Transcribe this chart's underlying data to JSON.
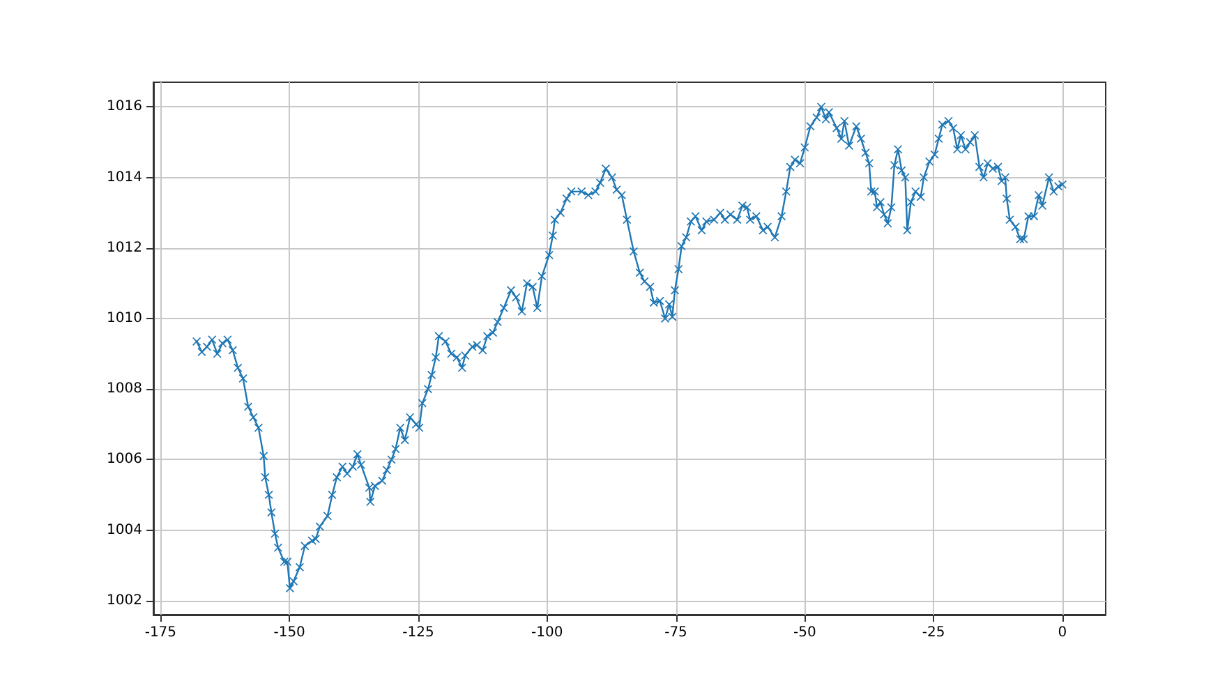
{
  "chart_data": {
    "type": "line",
    "marker": "cross",
    "line_style": "solid",
    "grid": true,
    "xlim": [
      -176.4,
      8.4
    ],
    "xticks": [
      -175,
      -150,
      -125,
      -100,
      -75,
      -50,
      -25,
      0
    ],
    "ylim": [
      1001.6,
      1016.7
    ],
    "yticks": [
      1002,
      1004,
      1006,
      1008,
      1010,
      1012,
      1014,
      1016
    ],
    "series": [
      {
        "color": "#1f77b4",
        "x": [
          -168,
          -167,
          -166,
          -165,
          -164,
          -163,
          -162,
          -161,
          -160,
          -159,
          -158,
          -157,
          -156,
          -155,
          -154.7,
          -154,
          -153.5,
          -152.8,
          -152.2,
          -151,
          -150.4,
          -149.9,
          -149.2,
          -148,
          -147,
          -145.6,
          -144.9,
          -144.1,
          -142.6,
          -141.7,
          -140.8,
          -139.7,
          -138.8,
          -137.7,
          -136.8,
          -136.1,
          -134.5,
          -134.3,
          -133.4,
          -132,
          -131.1,
          -130.2,
          -129.4,
          -128.5,
          -127.6,
          -126.6,
          -125.4,
          -124.8,
          -124.2,
          -123.1,
          -122.4,
          -121.6,
          -121,
          -119.7,
          -118.6,
          -117.5,
          -116.5,
          -115.9,
          -114.5,
          -113.6,
          -112.5,
          -111.6,
          -110.5,
          -109.6,
          -108.4,
          -107,
          -106,
          -104.9,
          -103.9,
          -102.8,
          -101.9,
          -101,
          -99.6,
          -98.9,
          -98.5,
          -97.4,
          -96.2,
          -95.3,
          -93.3,
          -92,
          -90.6,
          -89.7,
          -88.6,
          -87.4,
          -86.5,
          -85.5,
          -84.5,
          -83.2,
          -82,
          -81.1,
          -80,
          -79.3,
          -78.1,
          -77.1,
          -76.3,
          -75.7,
          -75.2,
          -74.5,
          -73.9,
          -73,
          -72.1,
          -71.2,
          -70,
          -69.1,
          -67.6,
          -66.4,
          -65.5,
          -64.4,
          -63.1,
          -62.1,
          -61.2,
          -60.6,
          -59.4,
          -58.1,
          -57.2,
          -55.8,
          -54.5,
          -53.6,
          -52.8,
          -51.9,
          -50.9,
          -50,
          -48.9,
          -47.7,
          -46.8,
          -45.9,
          -45.3,
          -43.8,
          -42.9,
          -42.3,
          -41.4,
          -40,
          -39.1,
          -38.2,
          -37.5,
          -37.1,
          -36.4,
          -36,
          -35.3,
          -34.6,
          -33.9,
          -33.2,
          -32.6,
          -31.9,
          -31.2,
          -30.5,
          -30.1,
          -29.4,
          -28.5,
          -27.5,
          -26.9,
          -25.8,
          -24.8,
          -24,
          -23.3,
          -22.1,
          -21.2,
          -20.4,
          -19.7,
          -18.8,
          -17.9,
          -17,
          -16.1,
          -15.3,
          -14.5,
          -13.5,
          -12.5,
          -11.8,
          -11.1,
          -10.8,
          -10.2,
          -9.1,
          -8.2,
          -7.5,
          -6.6,
          -5.5,
          -4.6,
          -3.9,
          -2.6,
          -1.7,
          -0.8,
          0
        ],
        "values": [
          1009.35,
          1009.05,
          1009.2,
          1009.4,
          1009.0,
          1009.3,
          1009.4,
          1009.1,
          1008.6,
          1008.3,
          1007.5,
          1007.2,
          1006.9,
          1006.1,
          1005.5,
          1005.0,
          1004.5,
          1003.9,
          1003.5,
          1003.1,
          1003.1,
          1002.35,
          1002.55,
          1002.95,
          1003.55,
          1003.7,
          1003.75,
          1004.1,
          1004.4,
          1005.0,
          1005.5,
          1005.8,
          1005.6,
          1005.8,
          1006.15,
          1005.85,
          1005.2,
          1004.8,
          1005.25,
          1005.4,
          1005.7,
          1006.0,
          1006.3,
          1006.9,
          1006.55,
          1007.2,
          1007.0,
          1006.9,
          1007.6,
          1008.0,
          1008.4,
          1008.9,
          1009.5,
          1009.35,
          1009.0,
          1008.9,
          1008.6,
          1008.95,
          1009.2,
          1009.25,
          1009.1,
          1009.5,
          1009.6,
          1009.9,
          1010.3,
          1010.8,
          1010.6,
          1010.2,
          1011.0,
          1010.9,
          1010.3,
          1011.2,
          1011.8,
          1012.35,
          1012.8,
          1013.0,
          1013.4,
          1013.6,
          1013.6,
          1013.5,
          1013.6,
          1013.85,
          1014.25,
          1014.0,
          1013.65,
          1013.5,
          1012.8,
          1011.9,
          1011.3,
          1011.05,
          1010.9,
          1010.45,
          1010.5,
          1010.0,
          1010.4,
          1010.05,
          1010.8,
          1011.4,
          1012.05,
          1012.3,
          1012.75,
          1012.9,
          1012.5,
          1012.75,
          1012.8,
          1013.0,
          1012.8,
          1012.95,
          1012.8,
          1013.2,
          1013.15,
          1012.8,
          1012.9,
          1012.5,
          1012.6,
          1012.3,
          1012.9,
          1013.6,
          1014.3,
          1014.5,
          1014.4,
          1014.85,
          1015.45,
          1015.7,
          1016.0,
          1015.65,
          1015.85,
          1015.4,
          1015.1,
          1015.6,
          1014.9,
          1015.45,
          1015.1,
          1014.7,
          1014.4,
          1013.6,
          1013.6,
          1013.15,
          1013.3,
          1012.95,
          1012.7,
          1013.15,
          1014.35,
          1014.8,
          1014.2,
          1014.0,
          1012.5,
          1013.3,
          1013.6,
          1013.45,
          1014.0,
          1014.45,
          1014.65,
          1015.1,
          1015.5,
          1015.6,
          1015.4,
          1014.8,
          1015.2,
          1014.8,
          1015.0,
          1015.2,
          1014.3,
          1014.0,
          1014.4,
          1014.25,
          1014.3,
          1013.9,
          1014.0,
          1013.4,
          1012.8,
          1012.6,
          1012.25,
          1012.25,
          1012.9,
          1012.9,
          1013.5,
          1013.2,
          1014.0,
          1013.6,
          1013.75,
          1013.8
        ]
      }
    ]
  }
}
